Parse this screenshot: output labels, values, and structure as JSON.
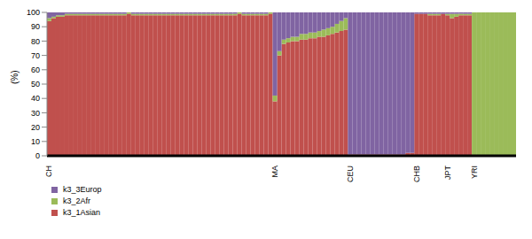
{
  "chart_data": {
    "type": "bar",
    "stacked": true,
    "y_label": "(%)",
    "ylim": [
      0,
      100
    ],
    "yticks": [
      0,
      10,
      20,
      30,
      40,
      50,
      60,
      70,
      80,
      90,
      100
    ],
    "legend": "bottom",
    "grid": false,
    "categories": [
      "CH",
      null,
      null,
      null,
      null,
      null,
      null,
      null,
      null,
      null,
      null,
      null,
      null,
      null,
      null,
      null,
      null,
      null,
      null,
      null,
      null,
      null,
      null,
      null,
      null,
      null,
      null,
      null,
      null,
      null,
      null,
      null,
      null,
      null,
      null,
      null,
      null,
      null,
      null,
      null,
      null,
      null,
      null,
      null,
      null,
      null,
      null,
      null,
      null,
      null,
      null,
      "MA",
      null,
      null,
      null,
      null,
      null,
      null,
      null,
      null,
      null,
      null,
      null,
      null,
      null,
      null,
      null,
      null,
      "CEU",
      null,
      null,
      null,
      null,
      null,
      null,
      null,
      null,
      null,
      null,
      null,
      null,
      null,
      null,
      "CHB",
      null,
      null,
      null,
      null,
      null,
      null,
      "JPT",
      null,
      null,
      null,
      null,
      null,
      "YRI",
      null,
      null,
      null,
      null,
      null,
      null,
      null,
      null,
      null
    ],
    "series": [
      {
        "name": "k3_1Asian",
        "color": "#c0504d",
        "values": [
          94,
          96,
          97,
          97,
          98,
          98,
          98,
          98,
          98,
          98,
          98,
          98,
          98,
          98,
          98,
          98,
          98,
          98,
          99,
          98,
          98,
          98,
          98,
          98,
          98,
          98,
          98,
          98,
          98,
          98,
          98,
          98,
          98,
          98,
          98,
          98,
          98,
          98,
          98,
          98,
          98,
          98,
          98,
          99,
          98,
          98,
          98,
          98,
          98,
          98,
          99,
          38,
          70,
          78,
          79,
          80,
          80,
          81,
          81,
          82,
          82,
          83,
          83,
          84,
          85,
          86,
          87,
          88,
          1,
          1,
          1,
          1,
          1,
          1,
          1,
          1,
          1,
          1,
          1,
          1,
          1,
          2,
          2,
          99,
          99,
          99,
          98,
          98,
          98,
          99,
          98,
          96,
          97,
          98,
          98,
          98,
          0,
          0,
          0,
          0,
          0,
          0,
          0,
          0,
          0,
          0
        ]
      },
      {
        "name": "k3_2Afr",
        "color": "#9bbb59",
        "values": [
          2,
          1,
          1,
          1,
          1,
          1,
          1,
          1,
          1,
          1,
          1,
          1,
          1,
          1,
          1,
          1,
          1,
          1,
          1,
          1,
          1,
          1,
          1,
          1,
          1,
          1,
          1,
          1,
          1,
          1,
          1,
          1,
          1,
          1,
          1,
          1,
          1,
          1,
          1,
          1,
          1,
          1,
          1,
          1,
          1,
          1,
          1,
          1,
          1,
          1,
          1,
          4,
          3,
          3,
          3,
          3,
          3,
          4,
          4,
          4,
          4,
          4,
          5,
          5,
          5,
          6,
          7,
          8,
          0,
          0,
          0,
          0,
          0,
          0,
          0,
          0,
          0,
          0,
          0,
          0,
          0,
          0,
          0,
          0,
          0,
          0,
          1,
          1,
          1,
          0,
          1,
          3,
          2,
          1,
          1,
          1,
          100,
          100,
          100,
          100,
          100,
          100,
          100,
          100,
          100,
          100
        ]
      },
      {
        "name": "k3_3Europ",
        "color": "#8064a2",
        "values": [
          4,
          3,
          2,
          2,
          1,
          1,
          1,
          1,
          1,
          1,
          1,
          1,
          1,
          1,
          1,
          1,
          1,
          1,
          0,
          1,
          1,
          1,
          1,
          1,
          1,
          1,
          1,
          1,
          1,
          1,
          1,
          1,
          1,
          1,
          1,
          1,
          1,
          1,
          1,
          1,
          1,
          1,
          1,
          0,
          1,
          1,
          1,
          1,
          1,
          1,
          0,
          58,
          27,
          19,
          18,
          17,
          17,
          15,
          15,
          14,
          14,
          13,
          12,
          11,
          10,
          8,
          6,
          4,
          99,
          99,
          99,
          99,
          99,
          99,
          99,
          99,
          99,
          99,
          99,
          99,
          99,
          98,
          98,
          1,
          1,
          1,
          1,
          1,
          1,
          1,
          1,
          1,
          1,
          1,
          1,
          1,
          0,
          0,
          0,
          0,
          0,
          0,
          0,
          0,
          0,
          0
        ]
      }
    ]
  }
}
